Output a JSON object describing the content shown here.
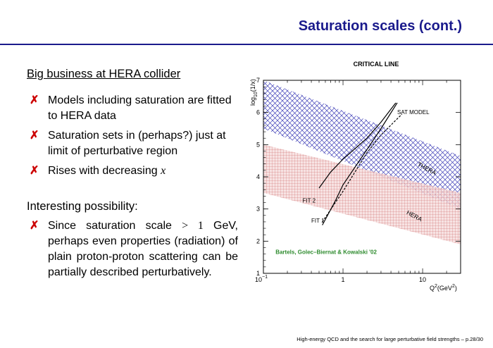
{
  "slide": {
    "title": "Saturation scales (cont.)",
    "footer": "High-energy QCD and the search for large perturbative field strengths – p.28/30"
  },
  "left": {
    "heading1": "Big business at HERA collider",
    "bullets1": [
      "Models including saturation are fitted to HERA data",
      "Saturation sets in (perhaps?) just at limit of perturbative region",
      "Rises with decreasing "
    ],
    "bullet_var": "x",
    "bullet_mark": "✗",
    "heading2": "Interesting possibility:",
    "bullet2_pre": "Since saturation scale ",
    "bullet2_math": "> 1",
    "bullet2_post": " GeV, perhaps even properties (radia­tion) of plain proton-proton scat­tering can be partially described perturbatively."
  },
  "chart_data": {
    "type": "line",
    "title": "CRITICAL LINE",
    "x_scale": "log",
    "xlim": [
      0.1,
      30
    ],
    "ylim": [
      1,
      7
    ],
    "x_ticks": [
      {
        "value": 0.1,
        "label": "10",
        "sup": "−1"
      },
      {
        "value": 1,
        "label": "1"
      },
      {
        "value": 10,
        "label": "10"
      }
    ],
    "y_ticks": [
      1,
      2,
      3,
      4,
      5,
      6,
      7
    ],
    "y_label": "log10(1/x)",
    "x_label": "Q2(GeV2)",
    "bands": [
      {
        "name": "THERA",
        "color": "#2b2bb0",
        "upper": [
          [
            0.1,
            7.0
          ],
          [
            30,
            4.65
          ]
        ],
        "lower": [
          [
            0.1,
            5.5
          ],
          [
            30,
            3.0
          ]
        ]
      },
      {
        "name": "HERA",
        "color": "#c24040",
        "upper": [
          [
            0.1,
            5.0
          ],
          [
            30,
            3.5
          ]
        ],
        "lower": [
          [
            0.1,
            3.5
          ],
          [
            30,
            1.9
          ]
        ]
      }
    ],
    "series": [
      {
        "name": "SAT MODEL",
        "style": "dashed",
        "x": [
          0.55,
          1,
          2,
          3,
          5.5
        ],
        "y": [
          2.6,
          3.55,
          4.75,
          5.3,
          5.95
        ]
      },
      {
        "name": "FIT 2",
        "style": "solid",
        "x": [
          0.5,
          0.7,
          1,
          2,
          3,
          4.6
        ],
        "y": [
          3.65,
          4.15,
          4.55,
          5.2,
          5.7,
          6.3
        ]
      },
      {
        "name": "FIT 1",
        "style": "solid",
        "x": [
          0.55,
          0.8,
          1,
          2,
          3,
          4.8
        ],
        "y": [
          2.5,
          3.25,
          3.75,
          4.85,
          5.5,
          6.3
        ]
      }
    ],
    "annotations": {
      "sat_model": "SAT MODEL",
      "thera": "THERA",
      "hera": "HERA",
      "fit2": "FIT 2",
      "fit1": "FIT 1",
      "reference": "Bartels, Golec–Biernat & Kowalski '02"
    },
    "colors": {
      "reference": "#2e8b2e",
      "curve": "#000000"
    }
  }
}
